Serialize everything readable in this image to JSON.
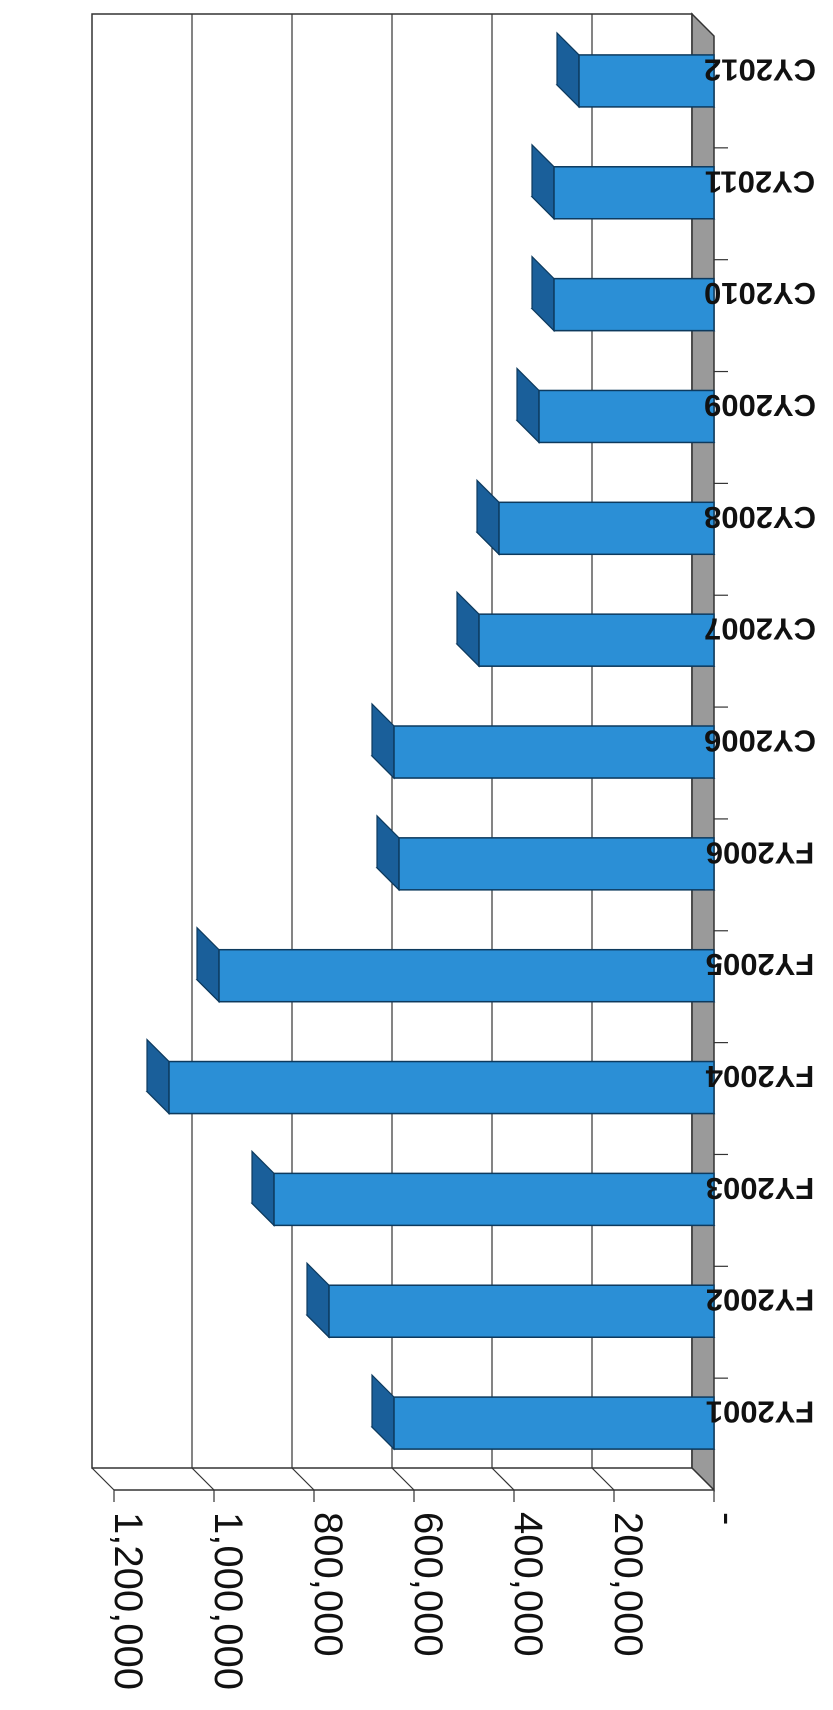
{
  "chart_data": {
    "type": "bar",
    "orientation": "horizontal",
    "style": "3d",
    "categories": [
      "FY2001",
      "FY2002",
      "FY2003",
      "FY2004",
      "FY2005",
      "FY2006",
      "CY2006",
      "CY2007",
      "CY2008",
      "CY2009",
      "CY2010",
      "CY2011",
      "CY2012"
    ],
    "values": [
      640000,
      770000,
      880000,
      1090000,
      990000,
      630000,
      640000,
      470000,
      430000,
      350000,
      320000,
      320000,
      270000
    ],
    "xlim": [
      0,
      1200000
    ],
    "x_ticks": [
      0,
      200000,
      400000,
      600000,
      800000,
      1000000,
      1200000
    ],
    "x_tick_labels": [
      "-",
      "200,000",
      "400,000",
      "600,000",
      "800,000",
      "1,000,000",
      "1,200,000"
    ],
    "grid": true,
    "colors": {
      "bar_front": "#2b8fd6",
      "bar_top": "#7ec4f0",
      "bar_side": "#1a5f9a",
      "wall": "#ffffff",
      "side_wall": "#9a9a9a",
      "grid": "#333333"
    }
  }
}
